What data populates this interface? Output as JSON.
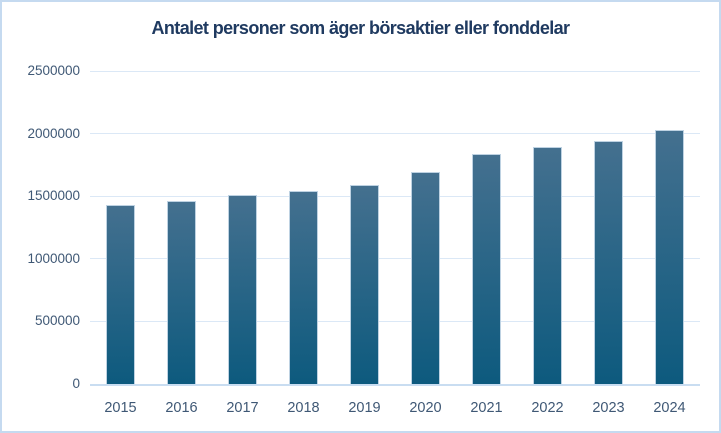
{
  "chart": {
    "title": "Antalet personer som äger börsaktier eller fonddelar"
  },
  "chart_data": {
    "type": "bar",
    "title": "Antalet personer som äger börsaktier eller fonddelar",
    "categories": [
      "2015",
      "2016",
      "2017",
      "2018",
      "2019",
      "2020",
      "2021",
      "2022",
      "2023",
      "2024"
    ],
    "values": [
      1430000,
      1465000,
      1510000,
      1540000,
      1590000,
      1695000,
      1840000,
      1895000,
      1945000,
      2025000
    ],
    "xlabel": "",
    "ylabel": "",
    "ylim": [
      0,
      2500000
    ],
    "yticks": [
      0,
      500000,
      1000000,
      1500000,
      2000000,
      2500000
    ],
    "ytick_labels": [
      "0",
      "500000",
      "1000000",
      "1500000",
      "2000000",
      "2500000"
    ],
    "grid": true,
    "legend": false
  },
  "colors": {
    "bar_gradient_top": "#44708f",
    "bar_gradient_bottom": "#0d5a7e",
    "bar_border": "#bed2e2",
    "title_color": "#1f3a60",
    "axis_label_color": "#3f5875",
    "gridline_color": "#dbe8f6",
    "axis_line_color": "#c9ddf1",
    "frame_border": "#c5daf0",
    "background": "#ffffff"
  }
}
